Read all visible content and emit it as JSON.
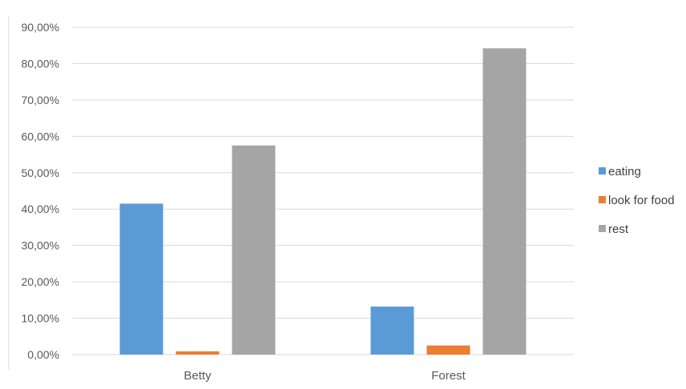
{
  "chart_data": {
    "type": "bar",
    "categories": [
      "Betty",
      "Forest"
    ],
    "series": [
      {
        "name": "eating",
        "color": "#5B9BD5",
        "values": [
          41.5,
          13.2
        ]
      },
      {
        "name": "look for food",
        "color": "#ED7D31",
        "values": [
          0.9,
          2.5
        ]
      },
      {
        "name": "rest",
        "color": "#A5A5A5",
        "values": [
          57.5,
          84.2
        ]
      }
    ],
    "title": "",
    "xlabel": "",
    "ylabel": "",
    "ylim": [
      0,
      90
    ],
    "y_ticks": [
      0,
      10,
      20,
      30,
      40,
      50,
      60,
      70,
      80,
      90
    ],
    "y_tick_labels": [
      "0,00%",
      "10,00%",
      "20,00%",
      "30,00%",
      "40,00%",
      "50,00%",
      "60,00%",
      "70,00%",
      "80,00%",
      "90,00%"
    ],
    "grid": true,
    "legend_position": "right",
    "gridline_color": "#D9D9D9"
  }
}
